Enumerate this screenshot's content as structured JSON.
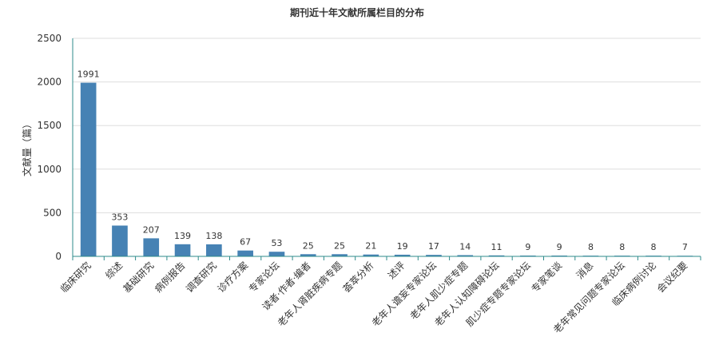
{
  "chart_data": {
    "type": "bar",
    "title": "期刊近十年文献所属栏目的分布",
    "xlabel": "",
    "ylabel": "文献量（篇）",
    "ylim": [
      0,
      2500
    ],
    "yticks": [
      0,
      500,
      1000,
      1500,
      2000,
      2500
    ],
    "grid": true,
    "bar_color": "#4682b4",
    "categories": [
      "临床研究",
      "综述",
      "基础研究",
      "病例报告",
      "调查研究",
      "诊疗方案",
      "专家论坛",
      "读者·作者·编者",
      "老年人肾脏疾病专题",
      "荟萃分析",
      "述评",
      "老年人谵妄专家论坛",
      "老年人肌少症专题",
      "老年人认知障碍论坛",
      "肌少症专题专家论坛",
      "专家笔谈",
      "消息",
      "老年常见问题专家论坛",
      "临床病例讨论",
      "会议纪要"
    ],
    "values": [
      1991,
      353,
      207,
      139,
      138,
      67,
      53,
      25,
      25,
      21,
      19,
      17,
      14,
      11,
      9,
      9,
      8,
      8,
      8,
      7
    ]
  }
}
